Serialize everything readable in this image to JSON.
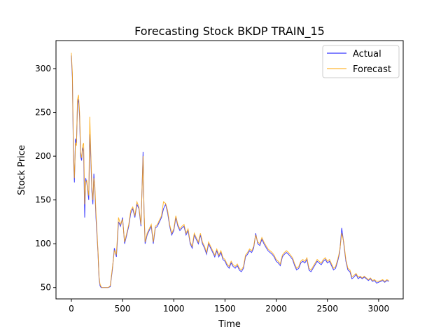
{
  "chart_data": {
    "type": "line",
    "title": "Forecasting Stock BKDP TRAIN_15",
    "xlabel": "Time",
    "ylabel": "Stock Price",
    "xlim": [
      -150,
      3240
    ],
    "ylim": [
      37,
      332
    ],
    "xticks": [
      0,
      500,
      1000,
      1500,
      2000,
      2500,
      3000
    ],
    "yticks": [
      50,
      100,
      150,
      200,
      250,
      300
    ],
    "legend_position": "top-right",
    "grid": false,
    "series": [
      {
        "name": "Actual",
        "color": "#0000ff",
        "x": [
          0,
          10,
          20,
          30,
          40,
          50,
          60,
          70,
          80,
          90,
          100,
          110,
          120,
          130,
          140,
          150,
          160,
          170,
          180,
          190,
          200,
          210,
          220,
          230,
          240,
          250,
          260,
          270,
          280,
          290,
          300,
          310,
          320,
          330,
          340,
          350,
          360,
          380,
          400,
          420,
          440,
          460,
          480,
          500,
          520,
          540,
          560,
          580,
          600,
          620,
          640,
          660,
          680,
          700,
          710,
          720,
          740,
          760,
          780,
          800,
          820,
          840,
          860,
          880,
          900,
          920,
          940,
          960,
          980,
          1000,
          1020,
          1040,
          1060,
          1080,
          1100,
          1120,
          1140,
          1160,
          1180,
          1200,
          1220,
          1240,
          1260,
          1280,
          1300,
          1320,
          1340,
          1360,
          1380,
          1400,
          1420,
          1440,
          1460,
          1480,
          1500,
          1520,
          1540,
          1560,
          1580,
          1600,
          1620,
          1640,
          1660,
          1680,
          1700,
          1720,
          1740,
          1760,
          1780,
          1800,
          1820,
          1840,
          1860,
          1880,
          1900,
          1920,
          1940,
          1960,
          1980,
          2000,
          2020,
          2040,
          2060,
          2080,
          2100,
          2120,
          2140,
          2160,
          2180,
          2200,
          2220,
          2240,
          2260,
          2280,
          2300,
          2320,
          2340,
          2360,
          2380,
          2400,
          2420,
          2440,
          2460,
          2480,
          2500,
          2520,
          2540,
          2560,
          2580,
          2600,
          2620,
          2640,
          2660,
          2680,
          2700,
          2720,
          2740,
          2760,
          2780,
          2800,
          2820,
          2840,
          2860,
          2880,
          2900,
          2920,
          2940,
          2960,
          2980,
          3000,
          3020,
          3040,
          3060,
          3080,
          3100
        ],
        "y": [
          315,
          290,
          200,
          170,
          220,
          215,
          260,
          265,
          245,
          200,
          195,
          210,
          205,
          130,
          175,
          170,
          160,
          150,
          225,
          200,
          160,
          145,
          180,
          160,
          130,
          110,
          90,
          60,
          52,
          50,
          50,
          50,
          50,
          50,
          50,
          50,
          50,
          51,
          70,
          95,
          85,
          125,
          120,
          130,
          100,
          110,
          120,
          135,
          140,
          130,
          145,
          140,
          120,
          205,
          135,
          100,
          110,
          115,
          120,
          100,
          118,
          120,
          125,
          130,
          140,
          145,
          135,
          120,
          110,
          115,
          130,
          120,
          115,
          118,
          120,
          110,
          115,
          100,
          95,
          110,
          105,
          100,
          110,
          100,
          95,
          88,
          100,
          95,
          90,
          85,
          92,
          85,
          90,
          82,
          80,
          75,
          72,
          78,
          74,
          72,
          75,
          70,
          68,
          72,
          85,
          88,
          92,
          90,
          95,
          112,
          100,
          98,
          105,
          100,
          96,
          92,
          90,
          88,
          85,
          80,
          78,
          75,
          85,
          88,
          90,
          88,
          85,
          82,
          75,
          70,
          72,
          78,
          80,
          78,
          82,
          70,
          68,
          72,
          76,
          80,
          78,
          76,
          80,
          82,
          78,
          80,
          75,
          70,
          72,
          80,
          90,
          118,
          100,
          80,
          70,
          68,
          60,
          62,
          65,
          60,
          62,
          60,
          62,
          60,
          58,
          60,
          57,
          58,
          55,
          56,
          57,
          58,
          56,
          58,
          57
        ]
      },
      {
        "name": "Forecast",
        "color": "#ffa500",
        "x": [
          0,
          10,
          20,
          30,
          40,
          50,
          60,
          70,
          80,
          90,
          100,
          110,
          120,
          130,
          140,
          150,
          160,
          170,
          180,
          190,
          200,
          210,
          220,
          230,
          240,
          250,
          260,
          270,
          280,
          290,
          300,
          310,
          320,
          330,
          340,
          350,
          360,
          380,
          400,
          420,
          440,
          460,
          480,
          500,
          520,
          540,
          560,
          580,
          600,
          620,
          640,
          660,
          680,
          700,
          710,
          720,
          740,
          760,
          780,
          800,
          820,
          840,
          860,
          880,
          900,
          920,
          940,
          960,
          980,
          1000,
          1020,
          1040,
          1060,
          1080,
          1100,
          1120,
          1140,
          1160,
          1180,
          1200,
          1220,
          1240,
          1260,
          1280,
          1300,
          1320,
          1340,
          1360,
          1380,
          1400,
          1420,
          1440,
          1460,
          1480,
          1500,
          1520,
          1540,
          1560,
          1580,
          1600,
          1620,
          1640,
          1660,
          1680,
          1700,
          1720,
          1740,
          1760,
          1780,
          1800,
          1820,
          1840,
          1860,
          1880,
          1900,
          1920,
          1940,
          1960,
          1980,
          2000,
          2020,
          2040,
          2060,
          2080,
          2100,
          2120,
          2140,
          2160,
          2180,
          2200,
          2220,
          2240,
          2260,
          2280,
          2300,
          2320,
          2340,
          2360,
          2380,
          2400,
          2420,
          2440,
          2460,
          2480,
          2500,
          2520,
          2540,
          2560,
          2580,
          2600,
          2620,
          2640,
          2660,
          2680,
          2700,
          2720,
          2740,
          2760,
          2780,
          2800,
          2820,
          2840,
          2860,
          2880,
          2900,
          2920,
          2940,
          2960,
          2980,
          3000,
          3020,
          3040,
          3060,
          3080,
          3100
        ],
        "y": [
          318,
          295,
          205,
          175,
          215,
          212,
          265,
          270,
          250,
          205,
          198,
          212,
          215,
          145,
          170,
          172,
          162,
          155,
          245,
          205,
          165,
          150,
          175,
          165,
          135,
          115,
          92,
          62,
          54,
          51,
          50,
          50,
          50,
          50,
          50,
          50,
          50,
          52,
          72,
          92,
          88,
          130,
          122,
          128,
          102,
          112,
          122,
          138,
          142,
          132,
          148,
          142,
          122,
          200,
          138,
          102,
          112,
          117,
          122,
          102,
          120,
          122,
          127,
          132,
          148,
          146,
          138,
          122,
          112,
          117,
          132,
          122,
          117,
          120,
          122,
          112,
          117,
          102,
          97,
          112,
          107,
          102,
          112,
          102,
          97,
          90,
          102,
          97,
          92,
          87,
          94,
          87,
          92,
          84,
          82,
          77,
          74,
          80,
          76,
          74,
          77,
          72,
          70,
          74,
          87,
          90,
          94,
          92,
          97,
          110,
          102,
          100,
          107,
          102,
          98,
          94,
          92,
          90,
          87,
          82,
          80,
          77,
          87,
          90,
          92,
          90,
          87,
          84,
          77,
          72,
          74,
          80,
          82,
          80,
          84,
          72,
          70,
          74,
          78,
          82,
          80,
          78,
          82,
          84,
          80,
          82,
          77,
          72,
          74,
          82,
          92,
          112,
          102,
          82,
          72,
          70,
          62,
          64,
          66,
          62,
          63,
          61,
          63,
          61,
          59,
          61,
          58,
          59,
          57,
          57,
          58,
          59,
          57,
          59,
          58
        ]
      }
    ]
  }
}
